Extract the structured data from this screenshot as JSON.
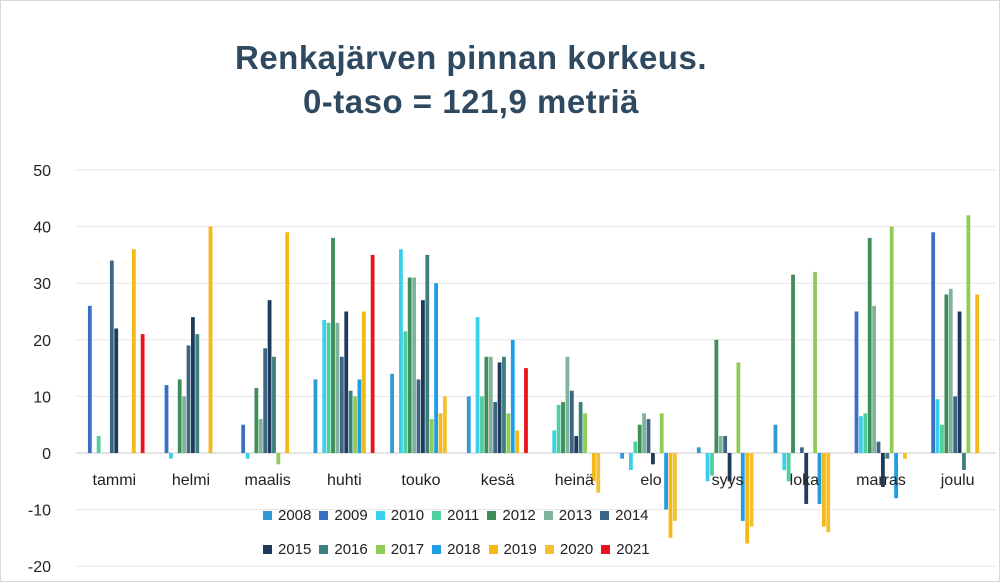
{
  "chart_data": {
    "type": "bar",
    "title": "Renkajärven pinnan korkeus.",
    "subtitle": "0-taso = 121,9 metriä",
    "xlabel": "",
    "ylabel": "",
    "ylim": [
      -20,
      50
    ],
    "yticks": [
      -20,
      -10,
      0,
      10,
      20,
      30,
      40,
      50
    ],
    "grid": true,
    "legend_position": "bottom",
    "categories": [
      "tammi",
      "helmi",
      "maalis",
      "huhti",
      "touko",
      "kesä",
      "heinä",
      "elo",
      "syys",
      "loka",
      "marras",
      "joulu"
    ],
    "series": [
      {
        "name": "2008",
        "color": "#2e9ad6",
        "values": [
          0,
          0,
          0,
          13,
          14,
          10,
          0,
          -1,
          1,
          5,
          0,
          0
        ]
      },
      {
        "name": "2009",
        "color": "#3a6fc4",
        "values": [
          26,
          12,
          5,
          0,
          0,
          0,
          0,
          0,
          0,
          0,
          25,
          39
        ]
      },
      {
        "name": "2010",
        "color": "#39d0ea",
        "values": [
          0,
          -1,
          -1,
          23.5,
          36,
          24,
          4,
          -3,
          -5,
          -3,
          6.5,
          9.5
        ]
      },
      {
        "name": "2011",
        "color": "#4fcf9f",
        "values": [
          3,
          0,
          0,
          23,
          21.5,
          10,
          8.5,
          2,
          -4,
          -5,
          7,
          5
        ]
      },
      {
        "name": "2012",
        "color": "#3e8e5a",
        "values": [
          0,
          13,
          11.5,
          38,
          31,
          17,
          9,
          5,
          20,
          31.5,
          38,
          28
        ]
      },
      {
        "name": "2013",
        "color": "#7fb39b",
        "values": [
          0,
          10,
          6,
          23,
          31,
          17,
          17,
          7,
          3,
          0,
          26,
          29
        ]
      },
      {
        "name": "2014",
        "color": "#3d6585",
        "values": [
          34,
          19,
          18.5,
          17,
          13,
          9,
          11,
          6,
          3,
          1,
          2,
          10
        ]
      },
      {
        "name": "2015",
        "color": "#1f3a5a",
        "values": [
          22,
          24,
          27,
          25,
          27,
          16,
          3,
          -2,
          -5,
          -9,
          -6,
          25
        ]
      },
      {
        "name": "2016",
        "color": "#3c7f7f",
        "values": [
          0,
          21,
          17,
          11,
          35,
          17,
          9,
          0,
          0,
          0,
          -1,
          -3
        ]
      },
      {
        "name": "2017",
        "color": "#8fcc55",
        "values": [
          0,
          0,
          -2,
          10,
          6,
          7,
          7,
          7,
          16,
          32,
          40,
          42
        ]
      },
      {
        "name": "2018",
        "color": "#1f9ee8",
        "values": [
          0,
          0,
          0,
          13,
          30,
          20,
          0,
          -10,
          -12,
          -9,
          -8,
          0
        ]
      },
      {
        "name": "2019",
        "color": "#f5b819",
        "values": [
          36,
          40,
          39,
          25,
          7,
          4,
          -5,
          -15,
          -16,
          -13,
          0,
          28
        ]
      },
      {
        "name": "2020",
        "color": "#f5c030",
        "values": [
          0,
          0,
          0,
          0,
          10,
          0,
          -7,
          -12,
          -13,
          -14,
          -1,
          0
        ]
      },
      {
        "name": "2021",
        "color": "#e8141c",
        "values": [
          21,
          0,
          0,
          35,
          0,
          15,
          0,
          0,
          0,
          0,
          0,
          0
        ]
      }
    ]
  }
}
